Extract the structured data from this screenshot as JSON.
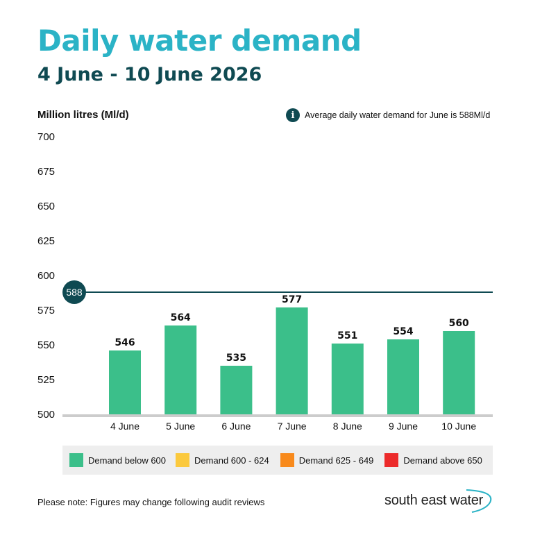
{
  "header": {
    "title": "Daily water demand",
    "subtitle": "4 June - 10 June 2026"
  },
  "info": {
    "icon": "info-icon",
    "text": "Average daily water demand for June is 588Ml/d"
  },
  "chart_data": {
    "type": "bar",
    "ylabel": "Million litres (Ml/d)",
    "categories": [
      "4 June",
      "5 June",
      "6 June",
      "7 June",
      "8 June",
      "9 June",
      "10 June"
    ],
    "values": [
      546,
      564,
      535,
      577,
      551,
      554,
      560
    ],
    "data_labels": [
      "546",
      "564",
      "535",
      "577",
      "551",
      "554",
      "560"
    ],
    "ylim": [
      500,
      700
    ],
    "yticks": [
      700,
      675,
      650,
      625,
      600,
      575,
      550,
      525,
      500
    ],
    "reference_line": {
      "value": 588,
      "label": "588"
    },
    "bar_color": "#3bbf8a",
    "reference_color": "#0f4a52",
    "grid": false,
    "legend_position": "bottom"
  },
  "legend": [
    {
      "label": "Demand below 600",
      "color": "#3bbf8a"
    },
    {
      "label": "Demand 600 - 624",
      "color": "#fbc93d"
    },
    {
      "label": "Demand 625 - 649",
      "color": "#f88a1c"
    },
    {
      "label": "Demand above 650",
      "color": "#ec2a2a"
    }
  ],
  "footer": {
    "note": "Please note: Figures may change following audit reviews",
    "logo_text": "south east water"
  }
}
